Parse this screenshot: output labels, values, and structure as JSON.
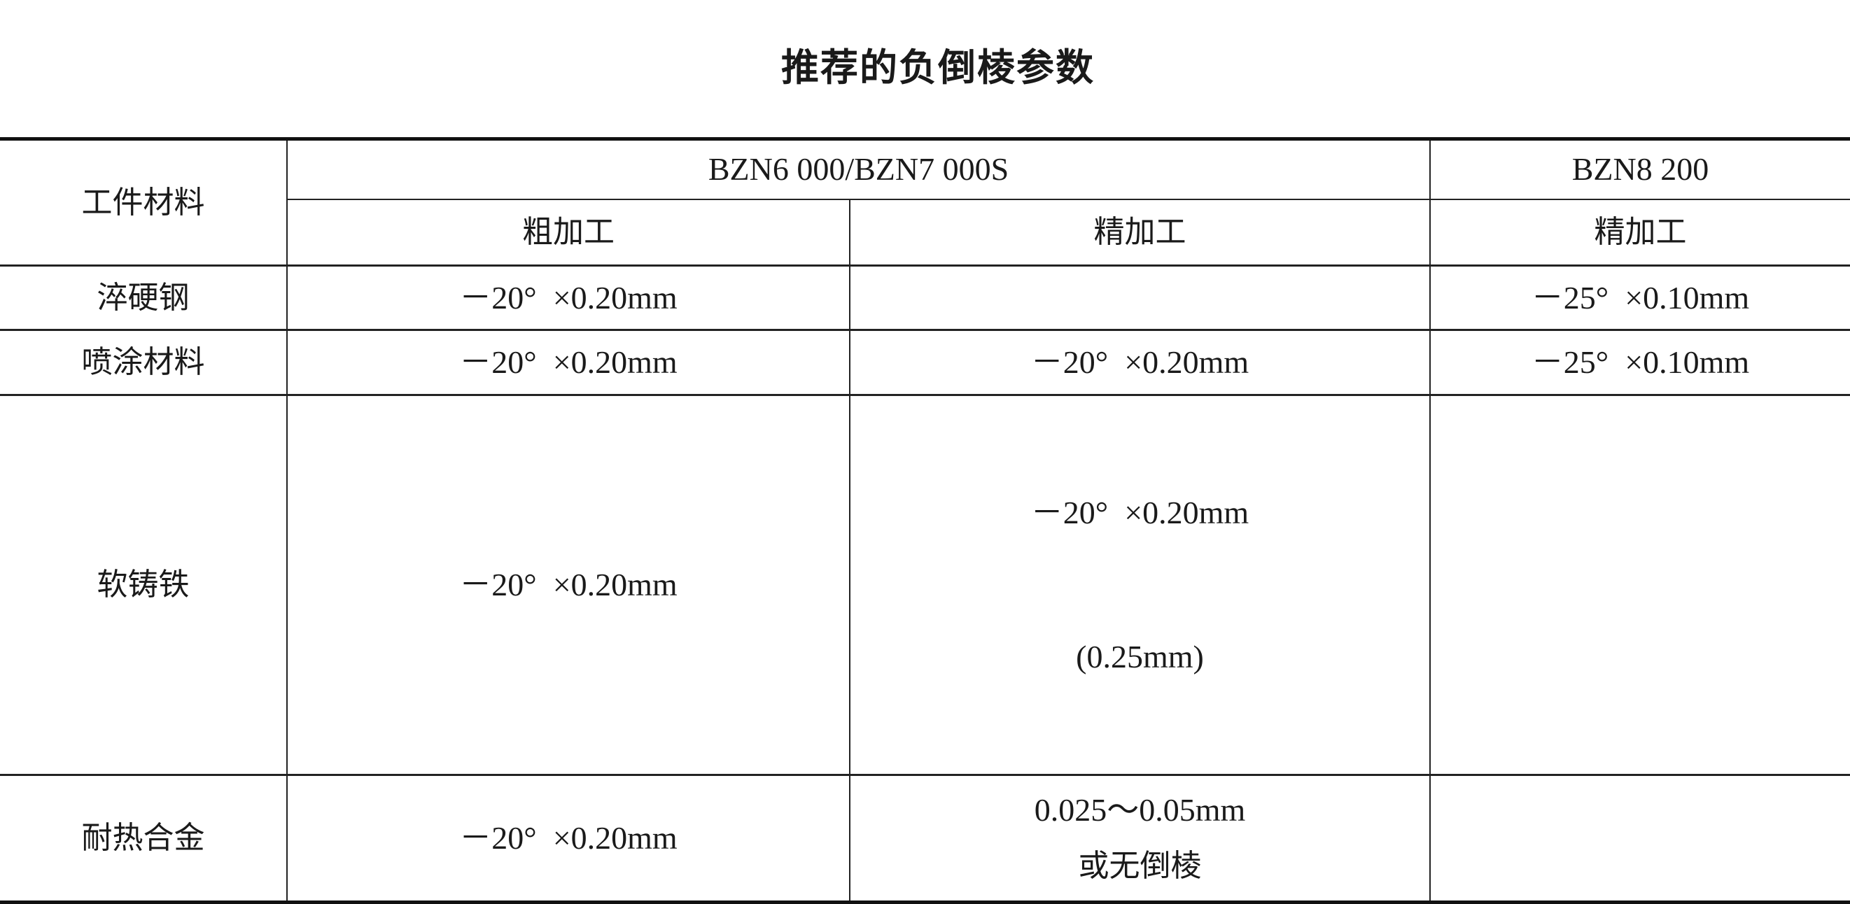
{
  "title": "推荐的负倒棱参数",
  "table": {
    "header": {
      "material": "工件材料",
      "group1": "BZN6 000/BZN7 000S",
      "group2": "BZN8 200",
      "sub": [
        "粗加工",
        "精加工",
        "精加工"
      ]
    },
    "rows": [
      {
        "material": "淬硬钢",
        "rough": "－20°  ×0.20mm",
        "finish": "",
        "finish_line2": "",
        "bzn8": "－25°  ×0.10mm"
      },
      {
        "material": "喷涂材料",
        "rough": "－20°  ×0.20mm",
        "finish": "－20°  ×0.20mm",
        "finish_line2": "",
        "bzn8": "－25°  ×0.10mm"
      },
      {
        "material": "软铸铁",
        "rough": "－20°  ×0.20mm",
        "finish": "－20°  ×0.20mm",
        "finish_line2": "(0.25mm)",
        "bzn8": ""
      },
      {
        "material": "耐热合金",
        "rough": "－20°  ×0.20mm",
        "finish": "0.025～0.05mm",
        "finish_line2": "或无倒棱",
        "bzn8": ""
      }
    ]
  }
}
